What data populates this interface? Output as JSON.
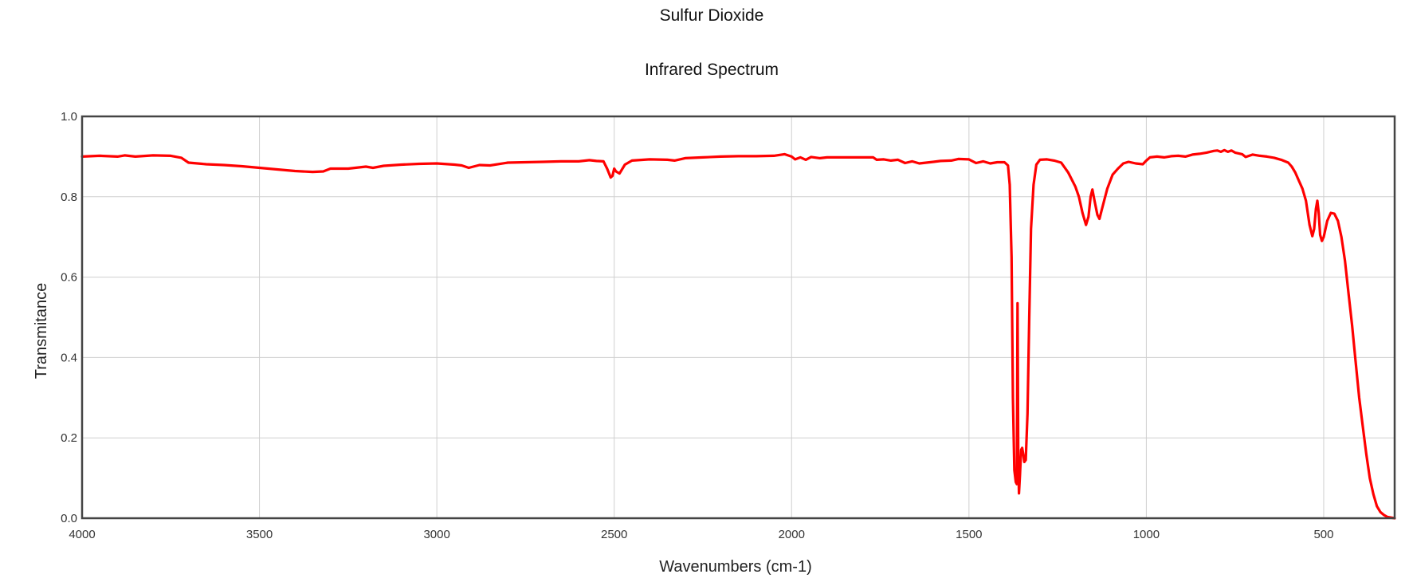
{
  "chart_data": {
    "type": "line",
    "title": "Sulfur Dioxide",
    "subtitle": "Infrared Spectrum",
    "xlabel": "Wavenumbers (cm-1)",
    "ylabel": "Transmitance",
    "xlim": [
      4000,
      300
    ],
    "ylim": [
      0,
      1.0
    ],
    "x_reversed": true,
    "grid": true,
    "xticks": [
      4000,
      3500,
      3000,
      2500,
      2000,
      1500,
      1000,
      500
    ],
    "yticks": [
      0.0,
      0.2,
      0.4,
      0.6,
      0.8,
      1.0
    ],
    "ytick_labels": [
      "0.0",
      "0.2",
      "0.4",
      "0.6",
      "0.8",
      "1.0"
    ],
    "line_color": "#ff0000",
    "series": [
      {
        "points": [
          [
            4000,
            0.9
          ],
          [
            3950,
            0.902
          ],
          [
            3900,
            0.9
          ],
          [
            3880,
            0.903
          ],
          [
            3850,
            0.9
          ],
          [
            3800,
            0.903
          ],
          [
            3750,
            0.902
          ],
          [
            3720,
            0.897
          ],
          [
            3700,
            0.885
          ],
          [
            3650,
            0.881
          ],
          [
            3600,
            0.879
          ],
          [
            3550,
            0.876
          ],
          [
            3500,
            0.872
          ],
          [
            3450,
            0.868
          ],
          [
            3400,
            0.864
          ],
          [
            3350,
            0.862
          ],
          [
            3320,
            0.863
          ],
          [
            3300,
            0.87
          ],
          [
            3250,
            0.87
          ],
          [
            3200,
            0.875
          ],
          [
            3180,
            0.872
          ],
          [
            3150,
            0.877
          ],
          [
            3100,
            0.88
          ],
          [
            3050,
            0.882
          ],
          [
            3000,
            0.883
          ],
          [
            2950,
            0.88
          ],
          [
            2930,
            0.878
          ],
          [
            2910,
            0.872
          ],
          [
            2880,
            0.879
          ],
          [
            2850,
            0.878
          ],
          [
            2800,
            0.885
          ],
          [
            2750,
            0.886
          ],
          [
            2700,
            0.887
          ],
          [
            2650,
            0.888
          ],
          [
            2600,
            0.888
          ],
          [
            2570,
            0.891
          ],
          [
            2550,
            0.889
          ],
          [
            2530,
            0.888
          ],
          [
            2520,
            0.87
          ],
          [
            2510,
            0.848
          ],
          [
            2505,
            0.852
          ],
          [
            2500,
            0.87
          ],
          [
            2495,
            0.863
          ],
          [
            2485,
            0.858
          ],
          [
            2470,
            0.88
          ],
          [
            2450,
            0.89
          ],
          [
            2400,
            0.893
          ],
          [
            2350,
            0.892
          ],
          [
            2330,
            0.89
          ],
          [
            2300,
            0.896
          ],
          [
            2250,
            0.898
          ],
          [
            2200,
            0.9
          ],
          [
            2150,
            0.901
          ],
          [
            2100,
            0.901
          ],
          [
            2050,
            0.902
          ],
          [
            2020,
            0.906
          ],
          [
            2000,
            0.9
          ],
          [
            1990,
            0.893
          ],
          [
            1975,
            0.898
          ],
          [
            1960,
            0.892
          ],
          [
            1945,
            0.899
          ],
          [
            1920,
            0.896
          ],
          [
            1900,
            0.898
          ],
          [
            1850,
            0.898
          ],
          [
            1800,
            0.898
          ],
          [
            1770,
            0.898
          ],
          [
            1760,
            0.892
          ],
          [
            1740,
            0.893
          ],
          [
            1720,
            0.89
          ],
          [
            1700,
            0.892
          ],
          [
            1680,
            0.884
          ],
          [
            1660,
            0.888
          ],
          [
            1640,
            0.883
          ],
          [
            1620,
            0.885
          ],
          [
            1600,
            0.887
          ],
          [
            1580,
            0.889
          ],
          [
            1550,
            0.89
          ],
          [
            1530,
            0.894
          ],
          [
            1500,
            0.893
          ],
          [
            1480,
            0.884
          ],
          [
            1460,
            0.888
          ],
          [
            1440,
            0.883
          ],
          [
            1420,
            0.886
          ],
          [
            1400,
            0.886
          ],
          [
            1390,
            0.878
          ],
          [
            1385,
            0.83
          ],
          [
            1380,
            0.65
          ],
          [
            1376,
            0.3
          ],
          [
            1372,
            0.12
          ],
          [
            1368,
            0.09
          ],
          [
            1365,
            0.085
          ],
          [
            1363,
            0.535
          ],
          [
            1361,
            0.15
          ],
          [
            1359,
            0.062
          ],
          [
            1356,
            0.11
          ],
          [
            1353,
            0.17
          ],
          [
            1350,
            0.175
          ],
          [
            1347,
            0.16
          ],
          [
            1344,
            0.14
          ],
          [
            1340,
            0.145
          ],
          [
            1335,
            0.26
          ],
          [
            1330,
            0.5
          ],
          [
            1325,
            0.72
          ],
          [
            1318,
            0.83
          ],
          [
            1310,
            0.88
          ],
          [
            1300,
            0.892
          ],
          [
            1280,
            0.893
          ],
          [
            1260,
            0.89
          ],
          [
            1240,
            0.885
          ],
          [
            1220,
            0.86
          ],
          [
            1200,
            0.825
          ],
          [
            1190,
            0.8
          ],
          [
            1180,
            0.76
          ],
          [
            1170,
            0.73
          ],
          [
            1163,
            0.75
          ],
          [
            1157,
            0.8
          ],
          [
            1152,
            0.818
          ],
          [
            1146,
            0.79
          ],
          [
            1138,
            0.755
          ],
          [
            1132,
            0.745
          ],
          [
            1125,
            0.77
          ],
          [
            1110,
            0.82
          ],
          [
            1095,
            0.855
          ],
          [
            1080,
            0.87
          ],
          [
            1065,
            0.883
          ],
          [
            1050,
            0.887
          ],
          [
            1030,
            0.883
          ],
          [
            1010,
            0.881
          ],
          [
            1000,
            0.89
          ],
          [
            990,
            0.898
          ],
          [
            970,
            0.9
          ],
          [
            950,
            0.898
          ],
          [
            930,
            0.901
          ],
          [
            910,
            0.902
          ],
          [
            890,
            0.9
          ],
          [
            870,
            0.905
          ],
          [
            850,
            0.907
          ],
          [
            830,
            0.91
          ],
          [
            810,
            0.914
          ],
          [
            800,
            0.915
          ],
          [
            790,
            0.912
          ],
          [
            780,
            0.916
          ],
          [
            770,
            0.912
          ],
          [
            760,
            0.915
          ],
          [
            750,
            0.91
          ],
          [
            730,
            0.906
          ],
          [
            720,
            0.899
          ],
          [
            710,
            0.902
          ],
          [
            700,
            0.905
          ],
          [
            680,
            0.902
          ],
          [
            660,
            0.9
          ],
          [
            640,
            0.897
          ],
          [
            620,
            0.892
          ],
          [
            600,
            0.885
          ],
          [
            590,
            0.875
          ],
          [
            580,
            0.86
          ],
          [
            570,
            0.84
          ],
          [
            560,
            0.82
          ],
          [
            550,
            0.79
          ],
          [
            540,
            0.73
          ],
          [
            532,
            0.702
          ],
          [
            527,
            0.72
          ],
          [
            522,
            0.77
          ],
          [
            518,
            0.79
          ],
          [
            514,
            0.76
          ],
          [
            510,
            0.705
          ],
          [
            505,
            0.69
          ],
          [
            500,
            0.7
          ],
          [
            490,
            0.74
          ],
          [
            480,
            0.76
          ],
          [
            470,
            0.758
          ],
          [
            460,
            0.74
          ],
          [
            450,
            0.7
          ],
          [
            440,
            0.64
          ],
          [
            430,
            0.56
          ],
          [
            420,
            0.48
          ],
          [
            410,
            0.39
          ],
          [
            400,
            0.3
          ],
          [
            390,
            0.23
          ],
          [
            380,
            0.16
          ],
          [
            370,
            0.1
          ],
          [
            360,
            0.06
          ],
          [
            350,
            0.03
          ],
          [
            340,
            0.015
          ],
          [
            330,
            0.008
          ],
          [
            320,
            0.003
          ],
          [
            300,
            0.0
          ]
        ]
      }
    ]
  }
}
